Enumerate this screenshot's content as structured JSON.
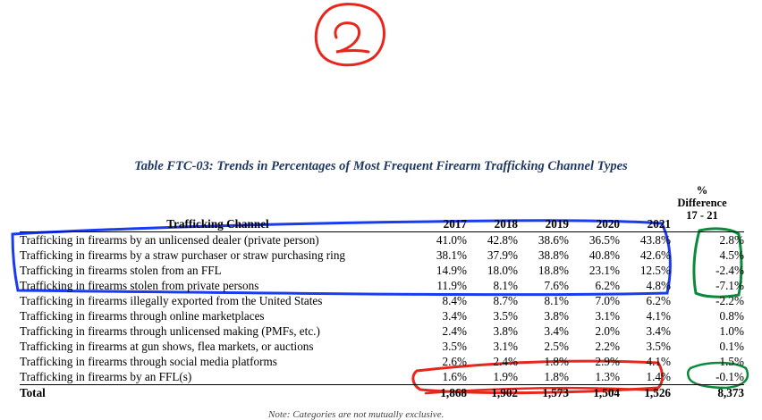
{
  "annotation_number": "2",
  "title": "Table FTC-03: Trends in Percentages of Most Frequent Firearm Trafficking Channel Types",
  "diff_header": [
    "%",
    "Difference",
    "17 - 21"
  ],
  "headers": {
    "channel": "Trafficking Channel",
    "years": [
      "2017",
      "2018",
      "2019",
      "2020",
      "2021"
    ]
  },
  "rows": [
    {
      "channel": "Trafficking in firearms by an unlicensed dealer (private person)",
      "values": [
        "41.0%",
        "42.8%",
        "38.6%",
        "36.5%",
        "43.8%"
      ],
      "diff": "2.8%"
    },
    {
      "channel": "Trafficking in firearms by a straw purchaser or straw purchasing ring",
      "values": [
        "38.1%",
        "37.9%",
        "38.8%",
        "40.8%",
        "42.6%"
      ],
      "diff": "4.5%"
    },
    {
      "channel": "Trafficking in firearms stolen from an FFL",
      "values": [
        "14.9%",
        "18.0%",
        "18.8%",
        "23.1%",
        "12.5%"
      ],
      "diff": "-2.4%"
    },
    {
      "channel": "Trafficking in firearms stolen from private persons",
      "values": [
        "11.9%",
        "8.1%",
        "7.6%",
        "6.2%",
        "4.8%"
      ],
      "diff": "-7.1%"
    },
    {
      "channel": "Trafficking in firearms illegally exported from the United States",
      "values": [
        "8.4%",
        "8.7%",
        "8.1%",
        "7.0%",
        "6.2%"
      ],
      "diff": "-2.2%"
    },
    {
      "channel": "Trafficking in firearms through online marketplaces",
      "values": [
        "3.4%",
        "3.5%",
        "3.8%",
        "3.1%",
        "4.1%"
      ],
      "diff": "0.8%"
    },
    {
      "channel": "Trafficking in firearms through unlicensed making (PMFs, etc.)",
      "values": [
        "2.4%",
        "3.8%",
        "3.4%",
        "2.0%",
        "3.4%"
      ],
      "diff": "1.0%"
    },
    {
      "channel": "Trafficking in firearms at gun shows, flea markets, or auctions",
      "values": [
        "3.5%",
        "3.1%",
        "2.5%",
        "2.2%",
        "3.5%"
      ],
      "diff": "0.1%"
    },
    {
      "channel": "Trafficking in firearms through social media platforms",
      "values": [
        "2.6%",
        "2.4%",
        "1.8%",
        "2.9%",
        "4.1%"
      ],
      "diff": "1.5%"
    },
    {
      "channel": "Trafficking in firearms by an FFL(s)",
      "values": [
        "1.6%",
        "1.9%",
        "1.8%",
        "1.3%",
        "1.4%"
      ],
      "diff": "-0.1%"
    }
  ],
  "total": {
    "label": "Total",
    "values": [
      "1,868",
      "1,902",
      "1,573",
      "1,504",
      "1,526"
    ],
    "diff": "8,373"
  },
  "note": "Note: Categories are not mutually exclusive.",
  "colors": {
    "title": "#1f3864",
    "blue_markup": "#1a3cf0",
    "red_markup": "#e8261b",
    "green_markup": "#0a8a3a"
  }
}
